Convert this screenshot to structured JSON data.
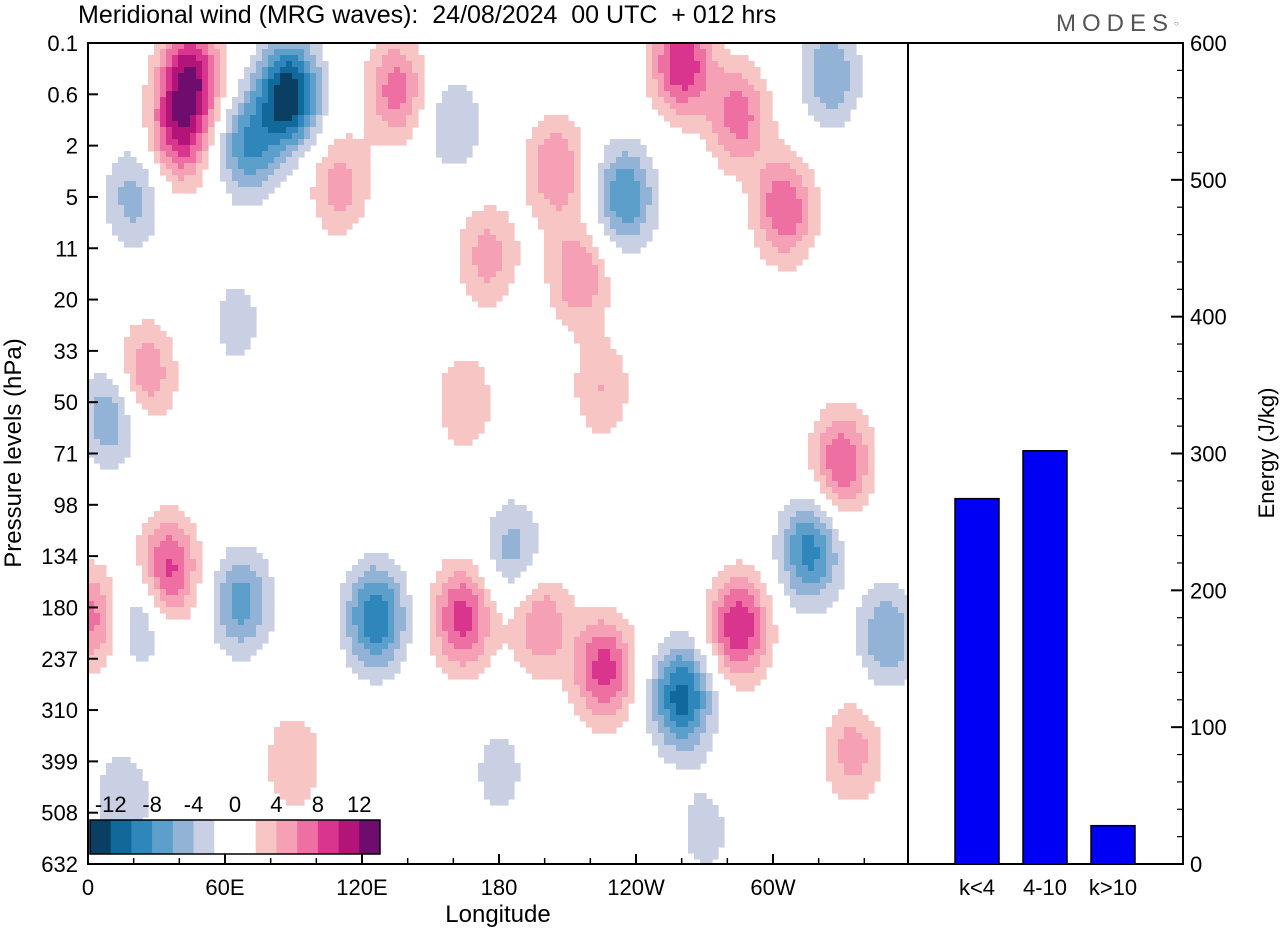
{
  "title": "Meridional wind (MRG waves):  24/08/2024  00 UTC  + 012 hrs",
  "logo": "MODES",
  "colors": {
    "negative": [
      "#0a3f63",
      "#11689a",
      "#2f86bb",
      "#5d9fcb",
      "#93b3d6",
      "#c9d0e4"
    ],
    "positive": [
      "#f7c6c4",
      "#f5a0b4",
      "#ee6fa2",
      "#d9348e",
      "#b31477",
      "#6f0d6e"
    ],
    "bars": "#0000f5"
  },
  "chart_data": [
    {
      "type": "heatmap",
      "title": "Meridional wind (MRG waves):  24/08/2024  00 UTC  + 012 hrs",
      "xlabel": "Longitude",
      "ylabel": "Pressure levels (hPa)",
      "x_ticks": [
        "0",
        "60E",
        "120E",
        "180",
        "120W",
        "60W"
      ],
      "y_ticks": [
        "0.1",
        "0.6",
        "2",
        "5",
        "11",
        "20",
        "33",
        "50",
        "71",
        "98",
        "134",
        "180",
        "237",
        "310",
        "399",
        "508",
        "632"
      ],
      "colorbar_ticks": [
        "-12",
        "-8",
        "-4",
        "0",
        "4",
        "8",
        "12"
      ],
      "colorbar_levels": [
        -14,
        -12,
        -10,
        -8,
        -6,
        -4,
        -2,
        2,
        4,
        6,
        8,
        10,
        12,
        14
      ],
      "blobs": [
        {
          "lon": 45,
          "level": 0.3,
          "value": 11
        },
        {
          "lon": 40,
          "level": 1.5,
          "value": 9
        },
        {
          "lon": 88,
          "level": 0.6,
          "value": -14
        },
        {
          "lon": 70,
          "level": 2,
          "value": -8
        },
        {
          "lon": 135,
          "level": 0.5,
          "value": 7
        },
        {
          "lon": 160,
          "level": 1.2,
          "value": -4
        },
        {
          "lon": 205,
          "level": 3,
          "value": 6
        },
        {
          "lon": 235,
          "level": 5,
          "value": -8
        },
        {
          "lon": 260,
          "level": 0.2,
          "value": 10
        },
        {
          "lon": 285,
          "level": 1,
          "value": 7
        },
        {
          "lon": 305,
          "level": 6,
          "value": 8
        },
        {
          "lon": 325,
          "level": 0.3,
          "value": -6
        },
        {
          "lon": 110,
          "level": 4,
          "value": 5
        },
        {
          "lon": 175,
          "level": 12,
          "value": 5
        },
        {
          "lon": 215,
          "level": 15,
          "value": 6
        },
        {
          "lon": 20,
          "level": 5,
          "value": -5
        },
        {
          "lon": 25,
          "level": 40,
          "value": 6
        },
        {
          "lon": 10,
          "level": 55,
          "value": -6
        },
        {
          "lon": 65,
          "level": 25,
          "value": -3
        },
        {
          "lon": 225,
          "level": 45,
          "value": 4
        },
        {
          "lon": 165,
          "level": 50,
          "value": 4
        },
        {
          "lon": 330,
          "level": 75,
          "value": 8
        },
        {
          "lon": 35,
          "level": 145,
          "value": 9
        },
        {
          "lon": 67,
          "level": 175,
          "value": -7
        },
        {
          "lon": 22,
          "level": 190,
          "value": -5
        },
        {
          "lon": 126,
          "level": 190,
          "value": -10
        },
        {
          "lon": 164,
          "level": 190,
          "value": 9
        },
        {
          "lon": 186,
          "level": 130,
          "value": -5
        },
        {
          "lon": 198,
          "level": 195,
          "value": 6
        },
        {
          "lon": 226,
          "level": 250,
          "value": 9
        },
        {
          "lon": 260,
          "level": 290,
          "value": -11
        },
        {
          "lon": 285,
          "level": 200,
          "value": 10
        },
        {
          "lon": 316,
          "level": 130,
          "value": -9
        },
        {
          "lon": 2,
          "level": 190,
          "value": 7
        },
        {
          "lon": 350,
          "level": 210,
          "value": -6
        },
        {
          "lon": 335,
          "level": 380,
          "value": 5
        },
        {
          "lon": 90,
          "level": 400,
          "value": 4
        },
        {
          "lon": 15,
          "level": 480,
          "value": -4
        },
        {
          "lon": 180,
          "level": 420,
          "value": -3
        },
        {
          "lon": 270,
          "level": 550,
          "value": -3
        }
      ]
    },
    {
      "type": "bar",
      "categories": [
        "k<4",
        "4-10",
        "k>10"
      ],
      "values": [
        267,
        302,
        28
      ],
      "ylabel": "Energy (J/kg)",
      "ylim": [
        0,
        600
      ],
      "y_ticks": [
        "0",
        "100",
        "200",
        "300",
        "400",
        "500",
        "600"
      ]
    }
  ]
}
